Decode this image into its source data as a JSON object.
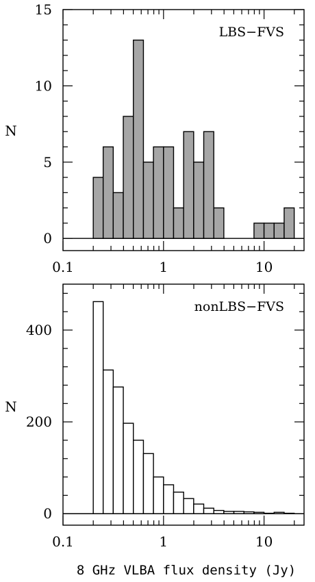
{
  "chart_data": [
    {
      "type": "bar",
      "title": "LBS−FVS",
      "xlabel": "",
      "ylabel": "N",
      "xscale": "log",
      "xlim": [
        0.1,
        25
      ],
      "ylim": [
        -0.8,
        15
      ],
      "x_ticks": [
        0.1,
        1,
        10
      ],
      "x_tick_labels": [
        "0.1",
        "1",
        "10"
      ],
      "y_ticks": [
        0,
        5,
        10,
        15
      ],
      "y_tick_labels": [
        "0",
        "5",
        "10",
        "15"
      ],
      "fill_color": "#a6a6a6",
      "legend": "none",
      "grid": false,
      "bin_edges": [
        0.1,
        0.2,
        0.251,
        0.316,
        0.398,
        0.501,
        0.631,
        0.794,
        1.0,
        1.259,
        1.585,
        1.995,
        2.512,
        3.162,
        3.981,
        5.012,
        6.31,
        7.943,
        10.0,
        12.589,
        15.849,
        19.953,
        25
      ],
      "values": [
        0,
        4,
        6,
        3,
        8,
        13,
        5,
        6,
        6,
        2,
        7,
        5,
        7,
        2,
        0,
        0,
        0,
        1,
        1,
        1,
        2,
        0
      ]
    },
    {
      "type": "bar",
      "title": "nonLBS−FVS",
      "xlabel": "8 GHz VLBA flux density (Jy)",
      "ylabel": "N",
      "xscale": "log",
      "xlim": [
        0.1,
        25
      ],
      "ylim": [
        -25,
        500
      ],
      "x_ticks": [
        0.1,
        1,
        10
      ],
      "x_tick_labels": [
        "0.1",
        "1",
        "10"
      ],
      "y_ticks": [
        0,
        200,
        400
      ],
      "y_tick_labels": [
        "0",
        "200",
        "400"
      ],
      "fill_color": "#ffffff",
      "legend": "none",
      "grid": false,
      "bin_edges": [
        0.1,
        0.2,
        0.251,
        0.316,
        0.398,
        0.501,
        0.631,
        0.794,
        1.0,
        1.259,
        1.585,
        1.995,
        2.512,
        3.162,
        3.981,
        5.012,
        6.31,
        7.943,
        10.0,
        12.589,
        15.849,
        19.953,
        25
      ],
      "values": [
        0,
        462,
        313,
        276,
        197,
        160,
        131,
        80,
        63,
        47,
        33,
        21,
        12,
        7,
        5,
        5,
        4,
        3,
        1,
        3,
        1,
        0
      ]
    }
  ]
}
